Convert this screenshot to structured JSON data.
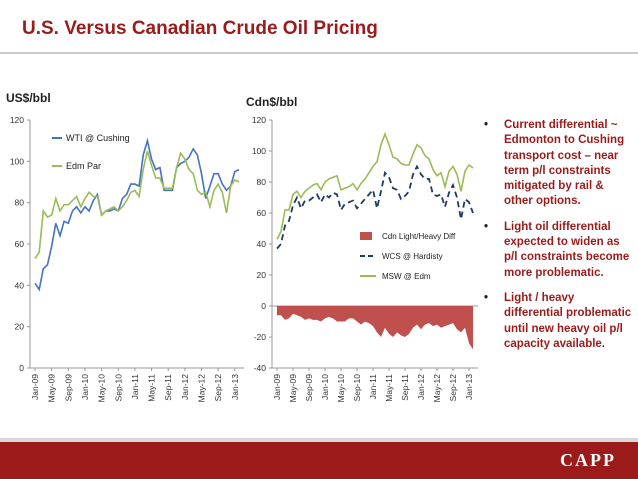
{
  "slide": {
    "title": "U.S. Versus Canadian Crude Oil Pricing",
    "logo": "CAPP",
    "bullets": [
      "Current differential ~ Edmonton to Cushing transport cost – near term p/l constraints mitigated by rail & other options.",
      "Light oil differential expected to widen as p/l constraints become more problematic.",
      "Light / heavy differential problematic until new heavy oil p/l capacity available."
    ],
    "colors": {
      "title": "#9b1b1b",
      "footer": "#9b1b1b"
    }
  },
  "chart_data": [
    {
      "type": "line",
      "ylabel": "US$/bbl",
      "ylim": [
        0,
        120
      ],
      "yticks": [
        0,
        20,
        40,
        60,
        80,
        100,
        120
      ],
      "grid": false,
      "legend": "top-left",
      "x_tick_labels": [
        "Jan-09",
        "May-09",
        "Sep-09",
        "Jan-10",
        "May-10",
        "Sep-10",
        "Jan-11",
        "May-11",
        "Sep-11",
        "Jan-12",
        "May-12",
        "Sep-12",
        "Jan-13"
      ],
      "x": [
        "Jan-09",
        "Feb-09",
        "Mar-09",
        "Apr-09",
        "May-09",
        "Jun-09",
        "Jul-09",
        "Aug-09",
        "Sep-09",
        "Oct-09",
        "Nov-09",
        "Dec-09",
        "Jan-10",
        "Feb-10",
        "Mar-10",
        "Apr-10",
        "May-10",
        "Jun-10",
        "Jul-10",
        "Aug-10",
        "Sep-10",
        "Oct-10",
        "Nov-10",
        "Dec-10",
        "Jan-11",
        "Feb-11",
        "Mar-11",
        "Apr-11",
        "May-11",
        "Jun-11",
        "Jul-11",
        "Aug-11",
        "Sep-11",
        "Oct-11",
        "Nov-11",
        "Dec-11",
        "Jan-12",
        "Feb-12",
        "Mar-12",
        "Apr-12",
        "May-12",
        "Jun-12",
        "Jul-12",
        "Aug-12",
        "Sep-12",
        "Oct-12",
        "Nov-12",
        "Dec-12",
        "Jan-13",
        "Feb-13"
      ],
      "series": [
        {
          "name": "WTI @ Cushing",
          "color": "#4472c4",
          "values": [
            41,
            38,
            48,
            50,
            59,
            70,
            64,
            71,
            70,
            76,
            78,
            75,
            78,
            76,
            81,
            84,
            74,
            76,
            76,
            77,
            76,
            82,
            84,
            89,
            89,
            88,
            103,
            110,
            101,
            96,
            97,
            86,
            86,
            86,
            97,
            99,
            100,
            102,
            106,
            103,
            94,
            82,
            88,
            94,
            94,
            89,
            86,
            88,
            95,
            96
          ]
        },
        {
          "name": "Edm Par",
          "color": "#9bbb59",
          "values": [
            53,
            56,
            76,
            73,
            74,
            82,
            76,
            79,
            79,
            81,
            83,
            78,
            82,
            85,
            83,
            83,
            74,
            76,
            77,
            78,
            76,
            78,
            81,
            85,
            86,
            83,
            96,
            105,
            98,
            92,
            92,
            87,
            87,
            87,
            97,
            104,
            101,
            96,
            94,
            86,
            84,
            85,
            78,
            86,
            89,
            85,
            75,
            88,
            91,
            90
          ]
        }
      ]
    },
    {
      "type": "line",
      "ylabel": "Cdn$/bbl",
      "ylim": [
        -40,
        120
      ],
      "yticks": [
        -40,
        -20,
        0,
        20,
        40,
        60,
        80,
        100,
        120
      ],
      "grid": false,
      "legend": "center-right",
      "x_tick_labels": [
        "Jan-09",
        "May-09",
        "Sep-09",
        "Jan-10",
        "May-10",
        "Sep-10",
        "Jan-11",
        "May-11",
        "Sep-11",
        "Jan-12",
        "May-12",
        "Sep-12",
        "Jan-13"
      ],
      "x": [
        "Jan-09",
        "Feb-09",
        "Mar-09",
        "Apr-09",
        "May-09",
        "Jun-09",
        "Jul-09",
        "Aug-09",
        "Sep-09",
        "Oct-09",
        "Nov-09",
        "Dec-09",
        "Jan-10",
        "Feb-10",
        "Mar-10",
        "Apr-10",
        "May-10",
        "Jun-10",
        "Jul-10",
        "Aug-10",
        "Sep-10",
        "Oct-10",
        "Nov-10",
        "Dec-10",
        "Jan-11",
        "Feb-11",
        "Mar-11",
        "Apr-11",
        "May-11",
        "Jun-11",
        "Jul-11",
        "Aug-11",
        "Sep-11",
        "Oct-11",
        "Nov-11",
        "Dec-11",
        "Jan-12",
        "Feb-12",
        "Mar-12",
        "Apr-12",
        "May-12",
        "Jun-12",
        "Jul-12",
        "Aug-12",
        "Sep-12",
        "Oct-12",
        "Nov-12",
        "Dec-12",
        "Jan-13",
        "Feb-13"
      ],
      "series": [
        {
          "name": "Cdn Light/Heavy Diff",
          "color": "#c0504d",
          "kind": "area",
          "values": [
            -6,
            -6,
            -9,
            -8,
            -5,
            -6,
            -7,
            -9,
            -8,
            -9,
            -9,
            -10,
            -8,
            -7,
            -8,
            -10,
            -10,
            -10,
            -8,
            -8,
            -10,
            -12,
            -10,
            -11,
            -13,
            -17,
            -20,
            -14,
            -18,
            -20,
            -17,
            -19,
            -20,
            -18,
            -14,
            -12,
            -15,
            -12,
            -11,
            -13,
            -12,
            -14,
            -13,
            -12,
            -11,
            -15,
            -17,
            -14,
            -24,
            -28
          ]
        },
        {
          "name": "WCS @ Hardisty",
          "color": "#1f3864",
          "kind": "dashed",
          "values": [
            37,
            40,
            52,
            55,
            65,
            70,
            63,
            68,
            68,
            70,
            72,
            67,
            72,
            70,
            73,
            72,
            62,
            66,
            67,
            68,
            63,
            66,
            69,
            72,
            75,
            63,
            74,
            86,
            83,
            76,
            75,
            69,
            71,
            74,
            85,
            90,
            85,
            82,
            82,
            72,
            71,
            72,
            64,
            73,
            78,
            70,
            56,
            69,
            67,
            60
          ]
        },
        {
          "name": "MSW @ Edm",
          "color": "#9bbb59",
          "kind": "line",
          "values": [
            43,
            48,
            62,
            62,
            72,
            74,
            70,
            74,
            76,
            78,
            79,
            75,
            80,
            82,
            83,
            84,
            75,
            76,
            77,
            79,
            75,
            79,
            82,
            86,
            90,
            93,
            104,
            111,
            104,
            96,
            95,
            92,
            91,
            91,
            98,
            104,
            102,
            97,
            95,
            88,
            84,
            86,
            77,
            87,
            90,
            85,
            74,
            87,
            91,
            89
          ]
        }
      ]
    }
  ]
}
